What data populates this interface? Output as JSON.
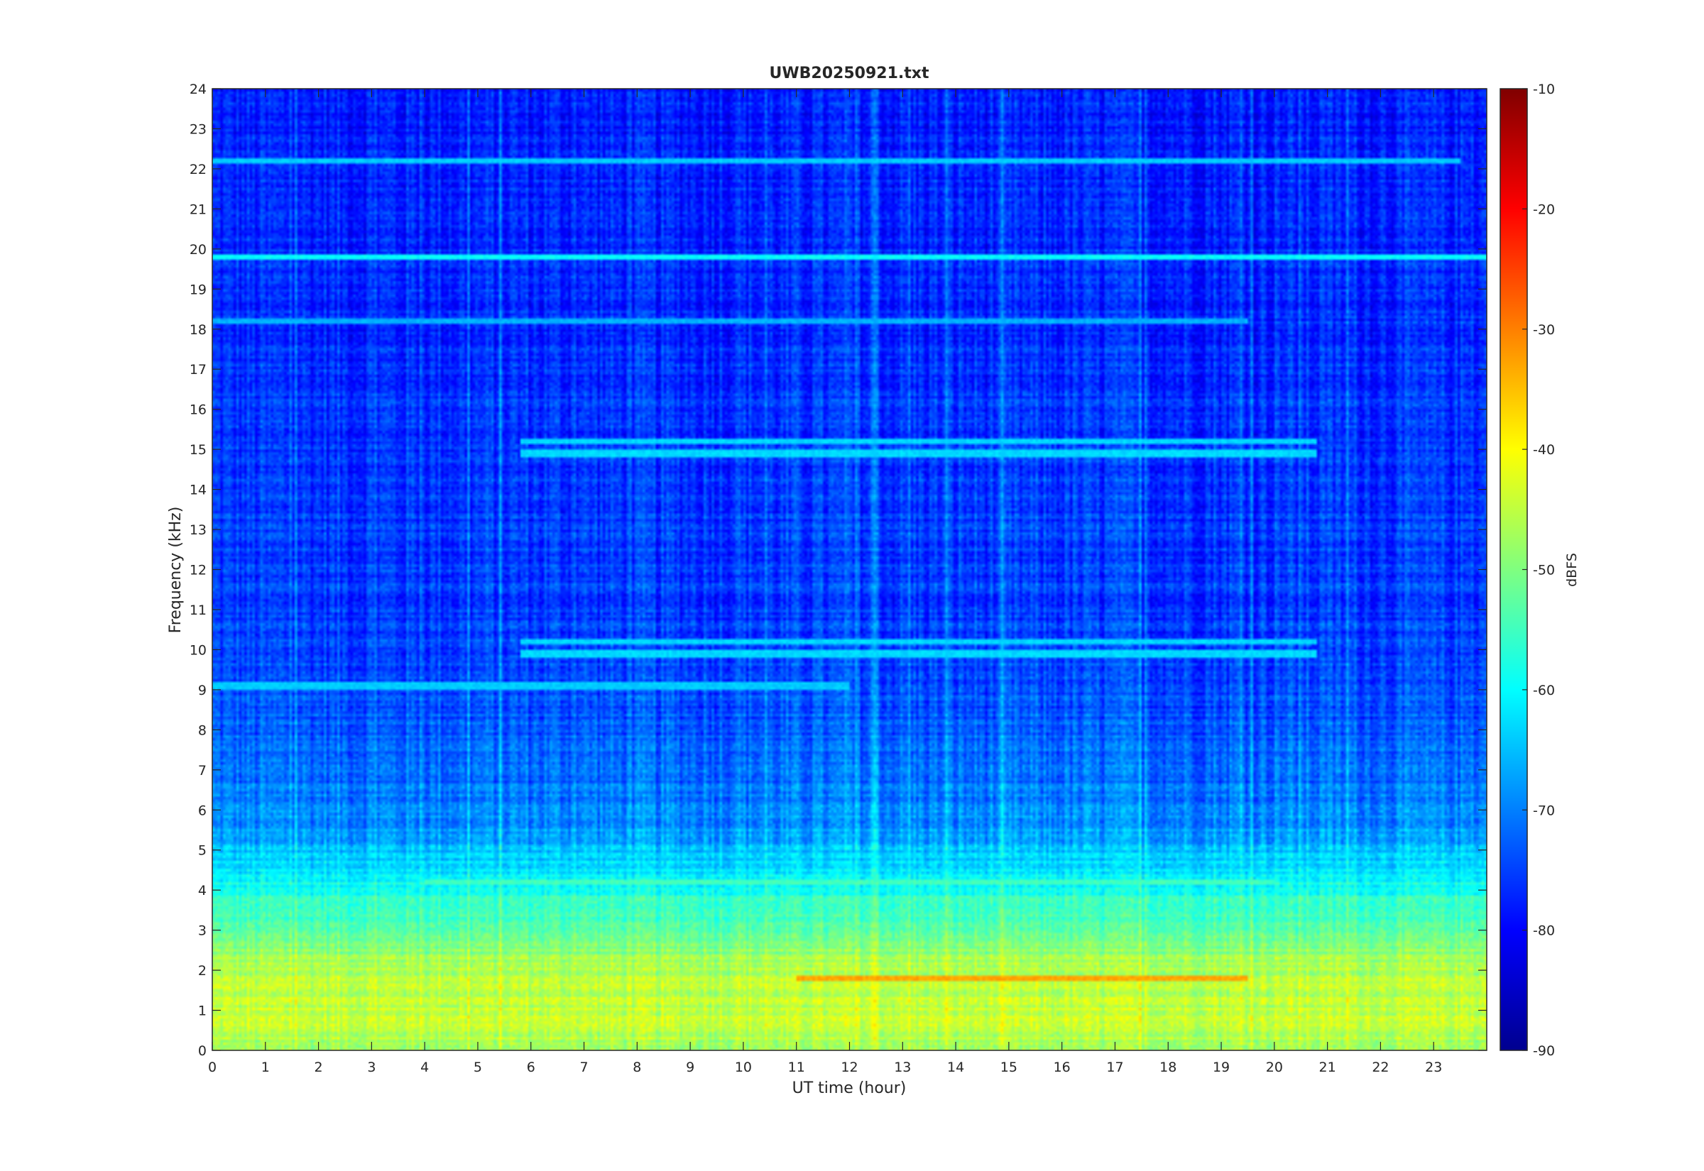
{
  "chart_data": {
    "type": "heatmap",
    "title": "UWB20250921.txt",
    "xlabel": "UT time (hour)",
    "ylabel": "Frequency (kHz)",
    "xlim": [
      0,
      24
    ],
    "ylim": [
      0,
      24
    ],
    "x_ticks": [
      "0",
      "1",
      "2",
      "3",
      "4",
      "5",
      "6",
      "7",
      "8",
      "9",
      "10",
      "11",
      "12",
      "13",
      "14",
      "15",
      "16",
      "17",
      "18",
      "19",
      "20",
      "21",
      "22",
      "23"
    ],
    "y_ticks": [
      "0",
      "1",
      "2",
      "3",
      "4",
      "5",
      "6",
      "7",
      "8",
      "9",
      "10",
      "11",
      "12",
      "13",
      "14",
      "15",
      "16",
      "17",
      "18",
      "19",
      "20",
      "21",
      "22",
      "23",
      "24"
    ],
    "colorbar": {
      "label": "dBFS",
      "range": [
        -90,
        -10
      ],
      "ticks": [
        "-10",
        "-20",
        "-30",
        "-40",
        "-50",
        "-60",
        "-70",
        "-80",
        "-90"
      ],
      "colormap": "jet",
      "colors": [
        "#00008f",
        "#0000ff",
        "#00ffff",
        "#ffff00",
        "#ff0000",
        "#800000"
      ]
    },
    "colormap_stops": [
      {
        "level": -90,
        "color": "#00008f"
      },
      {
        "level": -80,
        "color": "#0000ff"
      },
      {
        "level": -60,
        "color": "#00ffff"
      },
      {
        "level": -40,
        "color": "#ffff00"
      },
      {
        "level": -20,
        "color": "#ff0000"
      },
      {
        "level": -10,
        "color": "#800000"
      }
    ],
    "background_profile_dbfs": [
      {
        "freq_khz": 0.0,
        "level": -47
      },
      {
        "freq_khz": 1.0,
        "level": -45
      },
      {
        "freq_khz": 2.0,
        "level": -46
      },
      {
        "freq_khz": 3.0,
        "level": -52
      },
      {
        "freq_khz": 4.0,
        "level": -58
      },
      {
        "freq_khz": 5.0,
        "level": -65
      },
      {
        "freq_khz": 6.0,
        "level": -70
      },
      {
        "freq_khz": 8.0,
        "level": -73
      },
      {
        "freq_khz": 10.0,
        "level": -75
      },
      {
        "freq_khz": 14.0,
        "level": -76
      },
      {
        "freq_khz": 19.0,
        "level": -77
      },
      {
        "freq_khz": 24.0,
        "level": -78
      }
    ],
    "tone_lines": [
      {
        "freq_khz": 19.8,
        "t_start": 0,
        "t_end": 24,
        "level": -60
      },
      {
        "freq_khz": 22.2,
        "t_start": 0,
        "t_end": 23.5,
        "level": -64
      },
      {
        "freq_khz": 18.2,
        "t_start": 0,
        "t_end": 19.5,
        "level": -66
      },
      {
        "freq_khz": 15.2,
        "t_start": 5.8,
        "t_end": 20.8,
        "level": -63
      },
      {
        "freq_khz": 14.9,
        "t_start": 5.8,
        "t_end": 20.8,
        "level": -63
      },
      {
        "freq_khz": 10.2,
        "t_start": 5.8,
        "t_end": 20.8,
        "level": -63
      },
      {
        "freq_khz": 9.9,
        "t_start": 5.8,
        "t_end": 20.8,
        "level": -63
      },
      {
        "freq_khz": 9.1,
        "t_start": 0,
        "t_end": 12,
        "level": -64
      },
      {
        "freq_khz": 4.2,
        "t_start": 4,
        "t_end": 20,
        "level": -55
      },
      {
        "freq_khz": 1.8,
        "t_start": 11,
        "t_end": 19.5,
        "level": -33
      }
    ]
  }
}
